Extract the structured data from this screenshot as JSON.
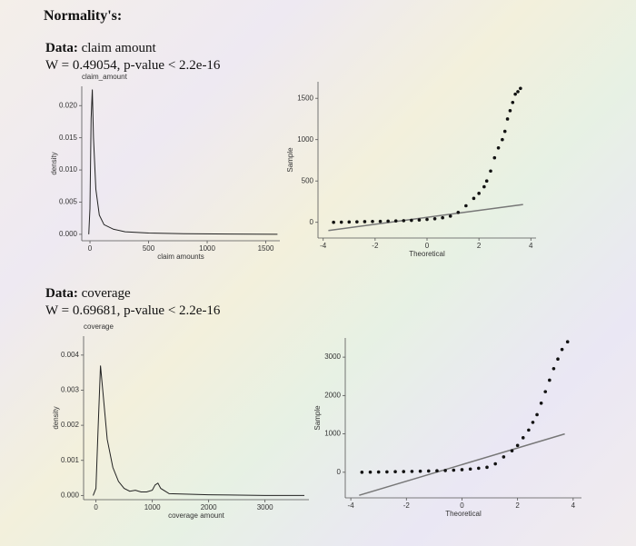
{
  "heading": "Normality's:",
  "sections": [
    {
      "label": "Data:",
      "name": "claim amount",
      "stat": "W = 0.49054, p-value < 2.2e-16"
    },
    {
      "label": "Data:",
      "name": "coverage",
      "stat": "W = 0.69681, p-value < 2.2e-16"
    }
  ],
  "chart_data": [
    {
      "type": "line",
      "title": "claim_amount",
      "x_label": "claim amounts",
      "y_label": "density",
      "color": "#222",
      "x": [
        -10,
        0,
        10,
        20,
        30,
        50,
        80,
        120,
        200,
        300,
        500,
        800,
        1200,
        1600
      ],
      "values": [
        0,
        0.004,
        0.018,
        0.0225,
        0.015,
        0.007,
        0.003,
        0.0015,
        0.0008,
        0.0004,
        0.0002,
        0.0001,
        5e-05,
        0
      ],
      "xlim": [
        -70,
        1620
      ],
      "ylim": [
        -0.001,
        0.023
      ],
      "xticks": [
        0,
        500,
        1000,
        1500
      ],
      "yticks": [
        {
          "value": 0,
          "label": "0.000"
        },
        {
          "value": 0.005,
          "label": "0.005"
        },
        {
          "value": 0.01,
          "label": "0.010"
        },
        {
          "value": 0.015,
          "label": "0.015"
        },
        {
          "value": 0.02,
          "label": "0.020"
        }
      ]
    },
    {
      "type": "scatter",
      "x_label": "Theoretical",
      "y_label": "Sample",
      "color": "#111",
      "x": [
        -3.6,
        -3.3,
        -3.0,
        -2.7,
        -2.4,
        -2.1,
        -1.8,
        -1.5,
        -1.2,
        -0.9,
        -0.6,
        -0.3,
        0,
        0.3,
        0.6,
        0.9,
        1.2,
        1.5,
        1.8,
        2.0,
        2.2,
        2.3,
        2.45,
        2.6,
        2.75,
        2.9,
        3.0,
        3.1,
        3.2,
        3.3,
        3.4,
        3.5,
        3.6
      ],
      "values": [
        0,
        2,
        4,
        6,
        8,
        10,
        12,
        14,
        17,
        20,
        24,
        29,
        35,
        43,
        55,
        75,
        120,
        200,
        290,
        350,
        430,
        500,
        620,
        780,
        900,
        1000,
        1100,
        1250,
        1350,
        1450,
        1550,
        1580,
        1620
      ],
      "reference_line": {
        "x": [
          -3.8,
          3.7
        ],
        "values": [
          -100,
          215
        ],
        "color": "#777"
      },
      "xlim": [
        -4.2,
        4.2
      ],
      "ylim": [
        -190,
        1700
      ],
      "xticks": [
        -4,
        -2,
        0,
        2,
        4
      ],
      "yticks": [
        0,
        500,
        1000,
        1500
      ]
    },
    {
      "type": "line",
      "title": "coverage",
      "x_label": "coverage amount",
      "y_label": "density",
      "color": "#222",
      "x": [
        -50,
        0,
        40,
        80,
        120,
        200,
        300,
        400,
        500,
        600,
        700,
        800,
        900,
        1000,
        1050,
        1100,
        1150,
        1300,
        2000,
        3000,
        3700
      ],
      "values": [
        0,
        0.0002,
        0.002,
        0.0037,
        0.003,
        0.0016,
        0.0008,
        0.0004,
        0.0002,
        0.00012,
        0.00015,
        0.0001,
        0.0001,
        0.00015,
        0.0003,
        0.00035,
        0.0002,
        5e-05,
        2e-05,
        0,
        0
      ],
      "xlim": [
        -220,
        3780
      ],
      "ylim": [
        -0.00012,
        0.00454
      ],
      "xticks": [
        0,
        1000,
        2000,
        3000
      ],
      "yticks": [
        {
          "value": 0,
          "label": "0.000"
        },
        {
          "value": 0.001,
          "label": "0.001"
        },
        {
          "value": 0.002,
          "label": "0.002"
        },
        {
          "value": 0.003,
          "label": "0.003"
        },
        {
          "value": 0.004,
          "label": "0.004"
        }
      ]
    },
    {
      "type": "scatter",
      "x_label": "Theoretical",
      "y_label": "Sample",
      "color": "#111",
      "x": [
        -3.6,
        -3.3,
        -3.0,
        -2.7,
        -2.4,
        -2.1,
        -1.8,
        -1.5,
        -1.2,
        -0.9,
        -0.6,
        -0.3,
        0,
        0.3,
        0.6,
        0.9,
        1.2,
        1.5,
        1.8,
        2.0,
        2.2,
        2.4,
        2.55,
        2.7,
        2.85,
        3.0,
        3.15,
        3.3,
        3.45,
        3.6,
        3.8
      ],
      "values": [
        0,
        3,
        6,
        10,
        14,
        18,
        22,
        27,
        32,
        38,
        45,
        55,
        68,
        85,
        105,
        130,
        220,
        400,
        560,
        700,
        900,
        1100,
        1300,
        1500,
        1800,
        2100,
        2400,
        2700,
        2950,
        3200,
        3400
      ],
      "reference_line": {
        "x": [
          -3.7,
          3.7
        ],
        "values": [
          -600,
          1000
        ],
        "color": "#777"
      },
      "xlim": [
        -4.2,
        4.3
      ],
      "ylim": [
        -667,
        3500
      ],
      "xticks": [
        -4,
        -2,
        0,
        2,
        4
      ],
      "yticks": [
        0,
        1000,
        2000,
        3000
      ]
    }
  ]
}
